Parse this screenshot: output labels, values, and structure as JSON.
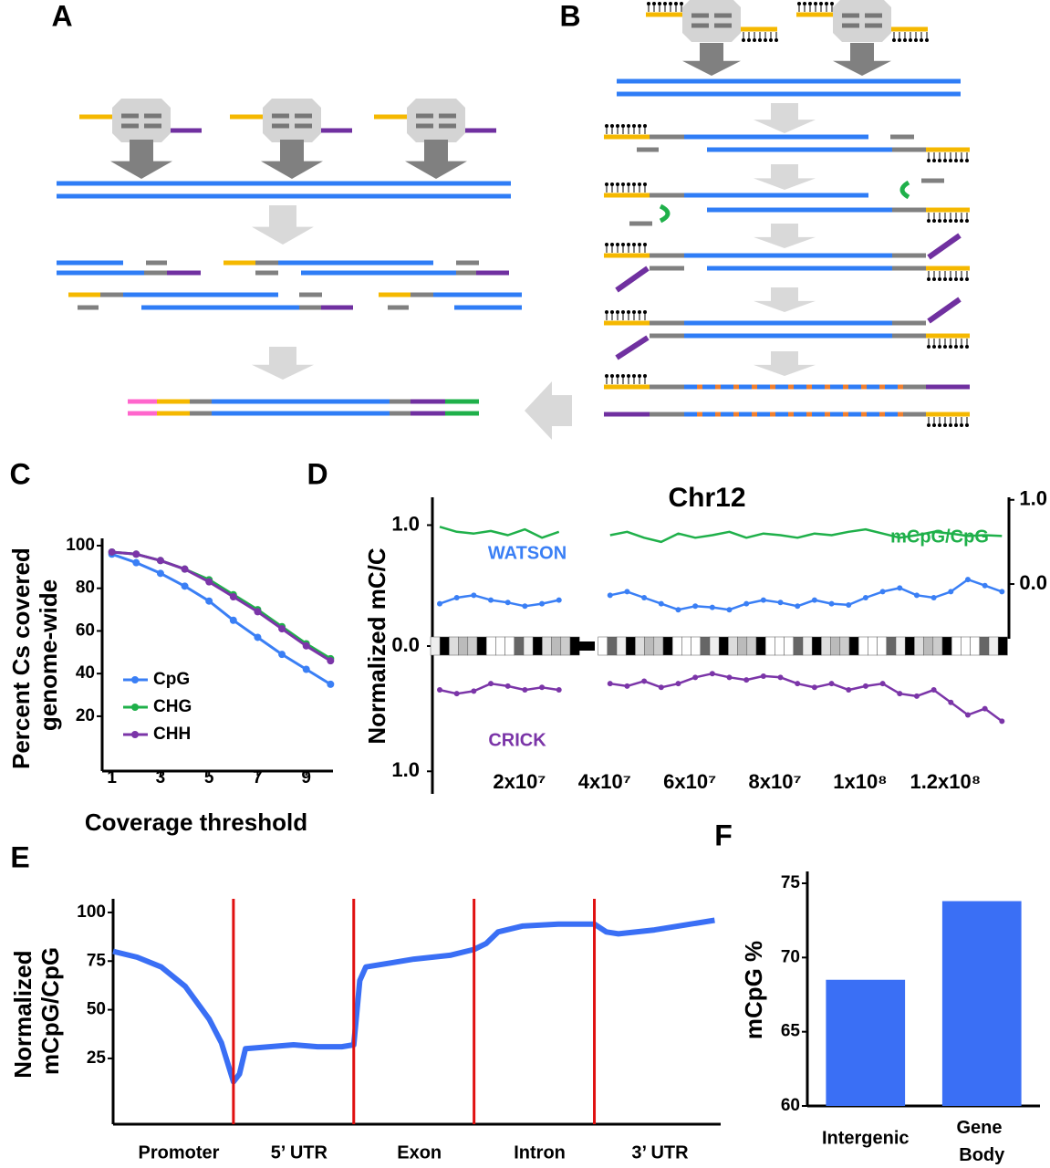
{
  "panel_labels": [
    "A",
    "B",
    "C",
    "D",
    "E",
    "F"
  ],
  "chart_data": [
    {
      "type": "line",
      "x_label": "Coverage threshold",
      "y_label": "Percent Cs covered genome-wide",
      "x": [
        1,
        2,
        3,
        4,
        5,
        6,
        7,
        8,
        9,
        10
      ],
      "xlim": [
        0.6,
        10.1
      ],
      "xticks": [
        1,
        3,
        5,
        7,
        9
      ],
      "ylim": [
        -5.7,
        103.4
      ],
      "yticks": [
        20,
        40,
        60,
        80,
        100
      ],
      "legend": "lower left",
      "series": [
        {
          "name": "CpG",
          "color": "#3a7ff5",
          "markers": true,
          "values": [
            96,
            92,
            87,
            81,
            74,
            65,
            57,
            49,
            42,
            35
          ]
        },
        {
          "name": "CHG",
          "color": "#1fb04a",
          "markers": true,
          "values": [
            97,
            96,
            93,
            89,
            84,
            77,
            70,
            62,
            54,
            47
          ]
        },
        {
          "name": "CHH",
          "color": "#7b35a8",
          "markers": true,
          "values": [
            97,
            96,
            93,
            89,
            83,
            76,
            69,
            61,
            53,
            46
          ]
        }
      ]
    },
    {
      "type": "line",
      "title": "Chr12",
      "y_label": "Normalized mC/C",
      "x": [
        0,
        4000000,
        8000000,
        12000000,
        16000000,
        20000000,
        24000000,
        28000000,
        32000000,
        36000000,
        40000000,
        44000000,
        48000000,
        52000000,
        56000000,
        60000000,
        64000000,
        68000000,
        72000000,
        76000000,
        80000000,
        84000000,
        88000000,
        92000000,
        96000000,
        100000000,
        104000000,
        108000000,
        112000000,
        116000000,
        120000000,
        124000000,
        128000000,
        132000000
      ],
      "xlim": [
        0,
        133000000
      ],
      "xticks": [
        {
          "value": 20000000,
          "label": "2x10⁷"
        },
        {
          "value": 40000000,
          "label": "4x10⁷"
        },
        {
          "value": 60000000,
          "label": "6x10⁷"
        },
        {
          "value": 80000000,
          "label": "8x10⁷"
        },
        {
          "value": 100000000,
          "label": "1x10⁸"
        },
        {
          "value": 120000000,
          "label": "1.2x10⁸"
        }
      ],
      "ylim": [
        0,
        1.23
      ],
      "yticks": [
        {
          "value": 0,
          "label": "0.0"
        },
        {
          "value": 1,
          "label": "1.0"
        }
      ],
      "y_lower_lim": [
        0,
        1.18
      ],
      "y_lower_ticks": [
        {
          "value": 1,
          "label": "1.0"
        }
      ],
      "y2lim": [
        -0.65,
        1.03
      ],
      "y2ticks": [
        {
          "value": 0,
          "label": "0.0"
        },
        {
          "value": 1,
          "label": "1.0"
        }
      ],
      "series": [
        {
          "name": "mCpG/CpG",
          "color": "#1fb04a",
          "axis": "y2",
          "markers": false,
          "values": [
            0.68,
            0.62,
            0.6,
            0.63,
            0.58,
            0.65,
            0.55,
            0.62,
            null,
            null,
            0.58,
            0.62,
            0.55,
            0.5,
            0.6,
            0.55,
            0.58,
            0.62,
            0.55,
            0.6,
            0.58,
            0.55,
            0.6,
            0.58,
            0.62,
            0.65,
            0.6,
            0.55,
            0.58,
            0.62,
            0.6,
            0.57,
            0.58,
            0.57
          ]
        },
        {
          "name": "WATSON",
          "color": "#3a7ff5",
          "axis": "y",
          "markers": true,
          "values": [
            0.35,
            0.4,
            0.42,
            0.38,
            0.36,
            0.33,
            0.35,
            0.38,
            null,
            null,
            0.42,
            0.45,
            0.4,
            0.35,
            0.3,
            0.33,
            0.32,
            0.3,
            0.35,
            0.38,
            0.36,
            0.33,
            0.38,
            0.35,
            0.34,
            0.4,
            0.45,
            0.48,
            0.42,
            0.4,
            0.45,
            0.55,
            0.5,
            0.45
          ]
        },
        {
          "name": "CRICK",
          "color": "#7b35a8",
          "axis": "y_lower",
          "markers": true,
          "values": [
            0.35,
            0.38,
            0.36,
            0.3,
            0.32,
            0.35,
            0.33,
            0.35,
            null,
            null,
            0.3,
            0.32,
            0.28,
            0.33,
            0.3,
            0.25,
            0.22,
            0.25,
            0.27,
            0.24,
            0.25,
            0.3,
            0.33,
            0.3,
            0.35,
            0.32,
            0.3,
            0.38,
            0.4,
            0.35,
            0.45,
            0.55,
            0.5,
            0.6
          ]
        }
      ]
    },
    {
      "type": "line",
      "y_label": "Normalized mCpG/CpG",
      "regions": [
        "Promoter",
        "5’ UTR",
        "Exon",
        "Intron",
        "3’ UTR"
      ],
      "boundaries": [
        1,
        2,
        3,
        4
      ],
      "boundary_color": "#e01010",
      "x": [
        0,
        0.2,
        0.4,
        0.6,
        0.8,
        0.9,
        1,
        1.05,
        1.1,
        1.3,
        1.5,
        1.7,
        1.9,
        2,
        2.05,
        2.1,
        2.3,
        2.5,
        2.8,
        3,
        3.1,
        3.2,
        3.4,
        3.7,
        4,
        4.1,
        4.2,
        4.5,
        4.8,
        5
      ],
      "xlim": [
        0,
        5.05
      ],
      "ylim": [
        -8.8,
        107
      ],
      "yticks": [
        25,
        50,
        75,
        100
      ],
      "series": [
        {
          "color": "#3a6ff5",
          "markers": false,
          "values": [
            80,
            77,
            72,
            62,
            45,
            33,
            13,
            17,
            30,
            31,
            32,
            31,
            31,
            32,
            65,
            72,
            74,
            76,
            78,
            81,
            84,
            90,
            93,
            94,
            94,
            90,
            89,
            91,
            94,
            96
          ]
        }
      ]
    },
    {
      "type": "bar",
      "y_label": "mCpG %",
      "categories": [
        "Intergenic",
        "Gene Body"
      ],
      "values": [
        68.5,
        73.8
      ],
      "color": "#3a6ff5",
      "ylim": [
        60,
        75.8
      ],
      "yticks": [
        60,
        65,
        70,
        75
      ]
    }
  ]
}
